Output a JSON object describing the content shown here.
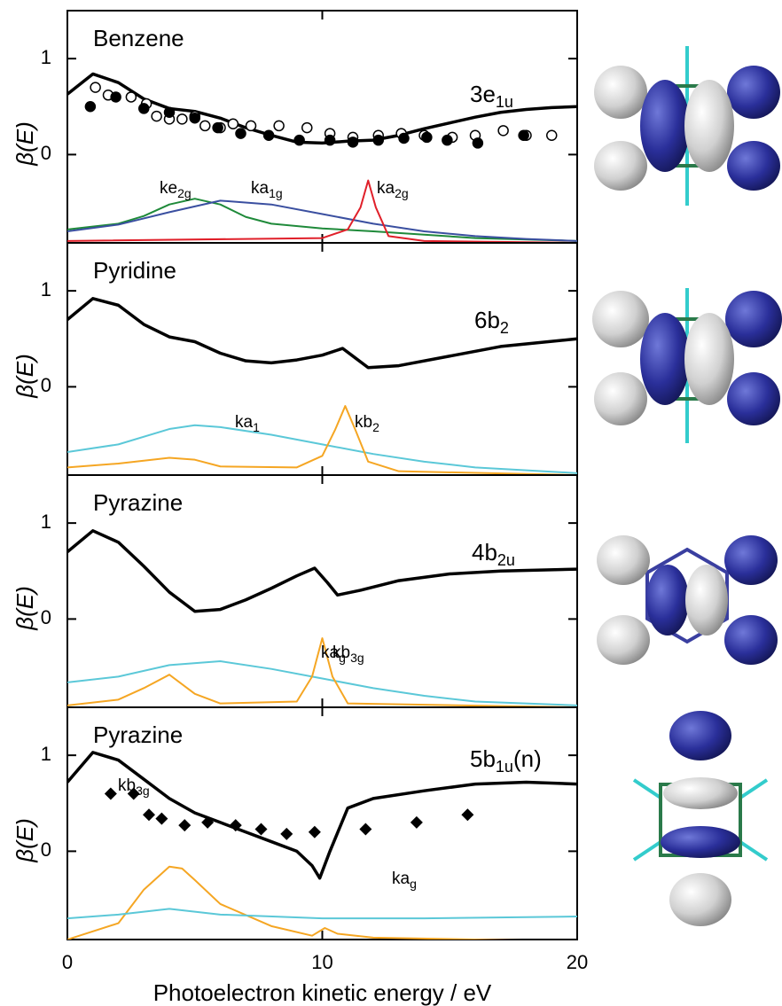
{
  "chart_data": [
    {
      "type": "line",
      "title": "Benzene",
      "ylabel": "β(E)",
      "xlim": [
        0,
        20
      ],
      "xticks": [
        0,
        10,
        20
      ],
      "ylim": [
        -0.92,
        1.5
      ],
      "yticks": [
        0,
        1
      ],
      "series": [
        {
          "label": {
            "main": "3e",
            "sub": "1u"
          },
          "style": "line",
          "color": "#000000",
          "x": [
            0,
            1,
            2,
            3,
            4,
            5,
            6,
            7,
            8,
            9,
            10,
            11,
            12,
            13,
            14,
            15,
            16,
            17,
            18,
            19,
            20
          ],
          "values": [
            0.63,
            0.84,
            0.75,
            0.58,
            0.48,
            0.45,
            0.38,
            0.28,
            0.2,
            0.13,
            0.12,
            0.14,
            0.15,
            0.2,
            0.27,
            0.33,
            0.39,
            0.44,
            0.47,
            0.49,
            0.5
          ]
        },
        {
          "style": "markers",
          "marker": "circle-open",
          "color": "#000000",
          "x": [
            1.1,
            1.6,
            2.5,
            3.1,
            3.5,
            4,
            4.5,
            5,
            5.4,
            6,
            6.5,
            7.2,
            8.3,
            9.4,
            10.3,
            11.2,
            12.2,
            13.1,
            14,
            15.1,
            16,
            17.1,
            18,
            19
          ],
          "values": [
            0.7,
            0.62,
            0.6,
            0.53,
            0.4,
            0.37,
            0.37,
            0.4,
            0.3,
            0.28,
            0.32,
            0.3,
            0.3,
            0.28,
            0.22,
            0.18,
            0.2,
            0.22,
            0.2,
            0.18,
            0.2,
            0.25,
            0.2,
            0.2
          ]
        },
        {
          "style": "markers",
          "marker": "circle",
          "color": "#000000",
          "x": [
            0.9,
            1.9,
            3,
            4,
            5,
            5.9,
            6.8,
            7.9,
            9.1,
            10.3,
            11.2,
            12.2,
            13.2,
            14.1,
            14.9,
            16.1,
            17.9
          ],
          "values": [
            0.5,
            0.6,
            0.48,
            0.44,
            0.38,
            0.28,
            0.22,
            0.2,
            0.15,
            0.15,
            0.13,
            0.15,
            0.17,
            0.18,
            0.15,
            0.12,
            0.2
          ]
        },
        {
          "label": {
            "main": "ke",
            "sub": "2g"
          },
          "style": "line",
          "color": "#1f8a3a",
          "x": [
            0,
            2,
            3,
            4,
            5,
            6,
            7,
            8,
            10,
            12,
            16,
            20
          ],
          "values": [
            -0.78,
            -0.72,
            -0.64,
            -0.52,
            -0.46,
            -0.52,
            -0.65,
            -0.72,
            -0.77,
            -0.8,
            -0.87,
            -0.9
          ]
        },
        {
          "label": {
            "main": "ka",
            "sub": "1g"
          },
          "style": "line",
          "color": "#3a4fa0",
          "x": [
            0,
            2,
            4,
            6,
            8,
            10,
            12,
            14,
            16,
            18,
            20
          ],
          "values": [
            -0.8,
            -0.73,
            -0.6,
            -0.48,
            -0.52,
            -0.62,
            -0.72,
            -0.8,
            -0.85,
            -0.88,
            -0.9
          ]
        },
        {
          "label": {
            "main": "ka",
            "sub": "2g"
          },
          "style": "line",
          "color": "#e0202a",
          "x": [
            0,
            10,
            11,
            11.5,
            11.8,
            12.1,
            12.6,
            14,
            20
          ],
          "values": [
            -0.9,
            -0.87,
            -0.78,
            -0.55,
            -0.27,
            -0.55,
            -0.85,
            -0.9,
            -0.92
          ]
        }
      ]
    },
    {
      "type": "line",
      "title": "Pyridine",
      "ylabel": "β(E)",
      "xlim": [
        0,
        20
      ],
      "xticks": [
        0,
        10,
        20
      ],
      "ylim": [
        -0.92,
        1.5
      ],
      "yticks": [
        0,
        1
      ],
      "series": [
        {
          "label": {
            "main": "6b",
            "sub": "2"
          },
          "style": "line",
          "color": "#000000",
          "x": [
            0,
            1,
            2,
            3,
            4,
            5,
            6,
            7,
            8,
            9,
            10,
            10.8,
            11.3,
            11.8,
            13,
            15,
            17,
            20
          ],
          "values": [
            0.7,
            0.92,
            0.85,
            0.65,
            0.52,
            0.47,
            0.35,
            0.27,
            0.25,
            0.28,
            0.33,
            0.4,
            0.3,
            0.2,
            0.22,
            0.32,
            0.42,
            0.5
          ]
        },
        {
          "label": {
            "main": "ka",
            "sub": "1"
          },
          "style": "line",
          "color": "#5bc8d8",
          "x": [
            0,
            2,
            4,
            5,
            6,
            8,
            10,
            12,
            14,
            16,
            20
          ],
          "values": [
            -0.68,
            -0.6,
            -0.44,
            -0.4,
            -0.42,
            -0.5,
            -0.6,
            -0.7,
            -0.78,
            -0.84,
            -0.9
          ]
        },
        {
          "label": {
            "main": "kb",
            "sub": "2"
          },
          "style": "line",
          "color": "#f5a623",
          "x": [
            0,
            2,
            4,
            5,
            6,
            9,
            10,
            10.5,
            10.9,
            11.3,
            11.8,
            13,
            20
          ],
          "values": [
            -0.84,
            -0.8,
            -0.74,
            -0.76,
            -0.83,
            -0.84,
            -0.72,
            -0.45,
            -0.2,
            -0.45,
            -0.78,
            -0.88,
            -0.92
          ]
        }
      ]
    },
    {
      "type": "line",
      "title": "Pyrazine",
      "ylabel": "β(E)",
      "xlim": [
        0,
        20
      ],
      "xticks": [
        0,
        10,
        20
      ],
      "ylim": [
        -0.92,
        1.5
      ],
      "yticks": [
        0,
        1
      ],
      "series": [
        {
          "label": {
            "main": "4b",
            "sub": "2u"
          },
          "style": "line",
          "color": "#000000",
          "x": [
            0,
            1,
            2,
            3,
            4,
            5,
            6,
            7,
            8,
            9,
            9.7,
            10.2,
            10.6,
            11.5,
            13,
            15,
            17,
            20
          ],
          "values": [
            0.7,
            0.92,
            0.8,
            0.55,
            0.28,
            0.08,
            0.1,
            0.2,
            0.32,
            0.45,
            0.53,
            0.38,
            0.25,
            0.3,
            0.4,
            0.47,
            0.5,
            0.52
          ]
        },
        {
          "label": {
            "main": "ka",
            "sub": "g"
          },
          "style": "line",
          "color": "#5bc8d8",
          "x": [
            0,
            2,
            4,
            6,
            8,
            10,
            12,
            14,
            16,
            20
          ],
          "values": [
            -0.66,
            -0.6,
            -0.48,
            -0.44,
            -0.52,
            -0.62,
            -0.72,
            -0.8,
            -0.86,
            -0.9
          ]
        },
        {
          "label": {
            "main": "kb",
            "sub": "3g"
          },
          "style": "line",
          "color": "#f5a623",
          "x": [
            0,
            2,
            3,
            4,
            5,
            6,
            9,
            9.6,
            10,
            10.4,
            11,
            20
          ],
          "values": [
            -0.9,
            -0.84,
            -0.72,
            -0.58,
            -0.78,
            -0.88,
            -0.86,
            -0.6,
            -0.2,
            -0.6,
            -0.88,
            -0.92
          ]
        }
      ]
    },
    {
      "type": "line",
      "title": "Pyrazine",
      "ylabel": "β(E)",
      "xlabel": "Photoelectron kinetic energy / eV",
      "xlim": [
        0,
        20
      ],
      "xticks": [
        0,
        10,
        20
      ],
      "ylim": [
        -0.92,
        1.5
      ],
      "yticks": [
        0,
        1
      ],
      "series": [
        {
          "label": {
            "main": "5b",
            "sub": "1u",
            "tail": "(n)"
          },
          "style": "line",
          "color": "#000000",
          "x": [
            0,
            1,
            2,
            3,
            4,
            5,
            6,
            7,
            8,
            9,
            9.6,
            9.9,
            10.3,
            11,
            12,
            14,
            16,
            18,
            20
          ],
          "values": [
            0.72,
            1.03,
            0.95,
            0.75,
            0.55,
            0.4,
            0.3,
            0.2,
            0.1,
            0.0,
            -0.15,
            -0.28,
            0.0,
            0.45,
            0.55,
            0.63,
            0.7,
            0.72,
            0.7
          ]
        },
        {
          "style": "markers",
          "marker": "diamond",
          "color": "#000000",
          "x": [
            1.7,
            2.6,
            3.2,
            3.7,
            4.6,
            5.5,
            6.6,
            7.6,
            8.6,
            9.7,
            11.7,
            13.7,
            15.7
          ],
          "values": [
            0.6,
            0.6,
            0.38,
            0.34,
            0.27,
            0.3,
            0.27,
            0.23,
            0.18,
            0.2,
            0.23,
            0.3,
            0.38
          ]
        },
        {
          "label": {
            "main": "kb",
            "sub": "3g"
          },
          "style": "line",
          "color": "#f5a623",
          "x": [
            0,
            2,
            3,
            4,
            4.5,
            5,
            6,
            8,
            9.6,
            10.1,
            10.6,
            12,
            20
          ],
          "values": [
            -0.92,
            -0.75,
            -0.4,
            -0.16,
            -0.18,
            -0.3,
            -0.55,
            -0.78,
            -0.88,
            -0.8,
            -0.86,
            -0.9,
            -0.94
          ]
        },
        {
          "label": {
            "main": "ka",
            "sub": "g"
          },
          "style": "line",
          "color": "#5bc8d8",
          "x": [
            0,
            2,
            4,
            6,
            10,
            14,
            20
          ],
          "values": [
            -0.7,
            -0.66,
            -0.6,
            -0.66,
            -0.7,
            -0.7,
            -0.68
          ]
        }
      ]
    }
  ]
}
